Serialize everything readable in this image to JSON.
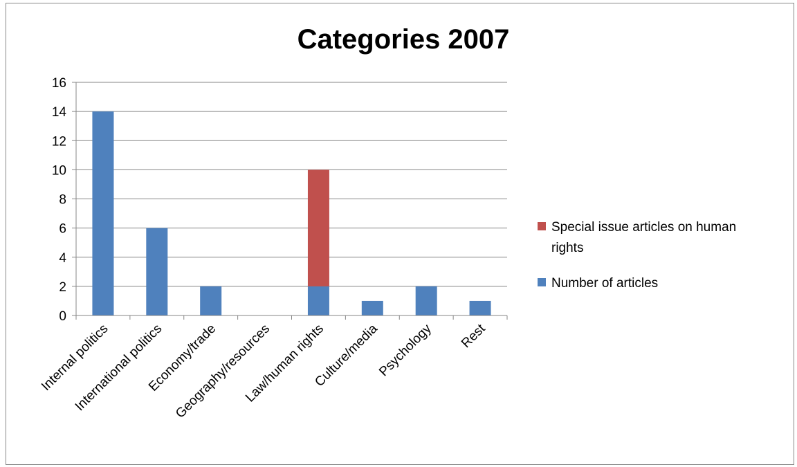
{
  "chart_data": {
    "type": "bar",
    "stacked": true,
    "title": "Categories 2007",
    "xlabel": "",
    "ylabel": "",
    "categories": [
      "Internal politics",
      "International politics",
      "Economy/trade",
      "Geography/resources",
      "Law/human rights",
      "Culture/media",
      "Psychology",
      "Rest"
    ],
    "series": [
      {
        "name": "Number of articles",
        "color": "#4F81BD",
        "values": [
          14,
          6,
          2,
          0,
          2,
          1,
          2,
          1
        ]
      },
      {
        "name": "Special issue articles on human rights",
        "color": "#C0504D",
        "values": [
          0,
          0,
          0,
          0,
          8,
          0,
          0,
          0
        ]
      }
    ],
    "ylim": [
      0,
      16
    ],
    "yticks": [
      0,
      2,
      4,
      6,
      8,
      10,
      12,
      14,
      16
    ],
    "grid": true,
    "legend": "right",
    "legend_order": [
      "Special issue articles on human rights",
      "Number of articles"
    ],
    "legend_display": {
      "Special issue articles on human rights": [
        "Special issue articles on human",
        "rights"
      ],
      "Number of articles": [
        "Number of articles"
      ]
    }
  }
}
